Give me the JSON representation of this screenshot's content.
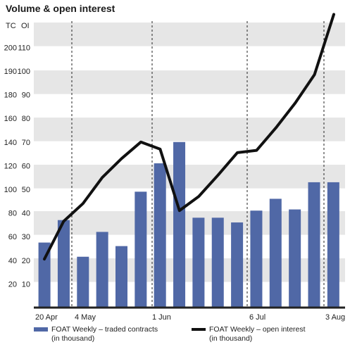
{
  "chart_data": {
    "type": "bar+line",
    "title": "Volume & open interest",
    "left_axis_label": "TC",
    "right_axis_label": "OI",
    "tc_ticks": [
      20,
      40,
      60,
      80,
      100,
      120,
      140,
      160,
      180,
      190,
      200
    ],
    "oi_ticks": [
      10,
      20,
      30,
      40,
      50,
      60,
      70,
      80,
      90,
      100,
      110
    ],
    "x_labels": [
      "20 Apr",
      "4 May",
      "1 Jun",
      "6 Jul",
      "3 Aug"
    ],
    "series": [
      {
        "name": "FOAT Weekly – traded contracts",
        "name_sub": "(in thousand)",
        "type": "bar",
        "color": "#5068a6",
        "values": [
          27.5,
          37,
          21.5,
          32,
          26,
          49,
          61,
          70,
          38,
          38,
          36,
          41,
          46,
          41.5,
          53,
          53
        ]
      },
      {
        "name": "FOAT Weekly – open interest",
        "name_sub": "(in thousand)",
        "type": "line",
        "color": "#111111",
        "values": [
          20.5,
          36.5,
          44,
          55,
          63,
          70,
          67,
          41,
          47,
          56,
          65.5,
          66.5,
          76,
          86.5,
          98.5,
          124
        ]
      }
    ],
    "grid": "alternating-bands"
  }
}
